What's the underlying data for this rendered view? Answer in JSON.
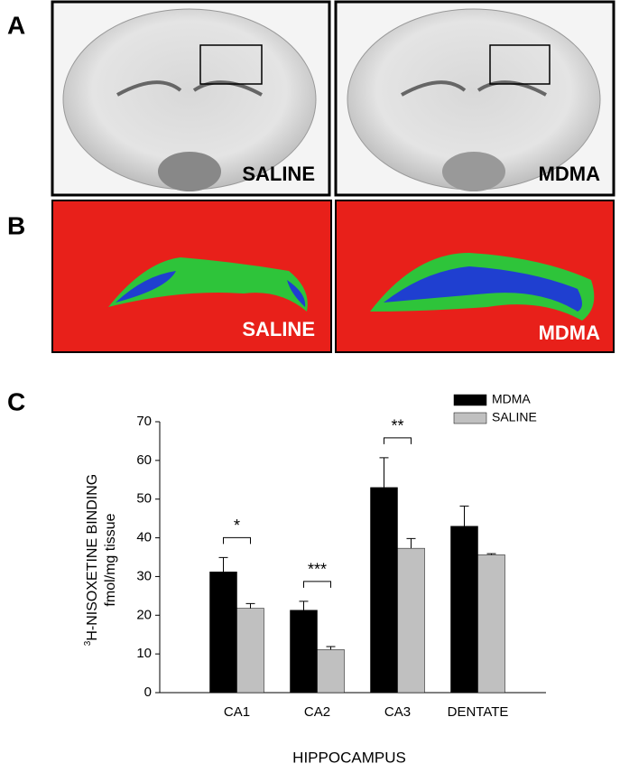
{
  "panel_labels": [
    "A",
    "B",
    "C"
  ],
  "image_labels": {
    "a_left": "SALINE",
    "a_right": "MDMA",
    "b_left": "SALINE",
    "b_right": "MDMA"
  },
  "chart_data": {
    "type": "bar",
    "ylabel_superscript": "3",
    "ylabel": "H-NISOXETINE BINDING",
    "ylabel_line2": "fmol/mg tissue",
    "xlabel": "HIPPOCAMPUS",
    "categories": [
      "CA1",
      "CA2",
      "CA3",
      "DENTATE"
    ],
    "series": [
      {
        "name": "MDMA",
        "color": "#000000",
        "values": [
          31.2,
          21.3,
          53,
          43
        ],
        "errors": [
          3.7,
          2.3,
          7.7,
          5.2
        ]
      },
      {
        "name": "SALINE",
        "color": "#c0c0c0",
        "values": [
          21.8,
          11.1,
          37.3,
          35.6
        ],
        "errors": [
          1.2,
          0.8,
          2.5,
          0.3
        ]
      }
    ],
    "significance": [
      "*",
      "***",
      "**",
      null
    ],
    "ylim": [
      0,
      70
    ],
    "yticks": [
      0,
      10,
      20,
      30,
      40,
      50,
      60,
      70
    ],
    "legend": "upper right"
  }
}
